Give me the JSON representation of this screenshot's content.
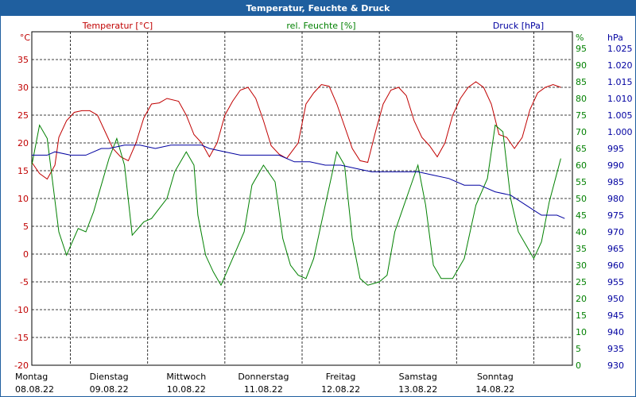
{
  "window": {
    "title": "Temperatur, Feuchte & Druck"
  },
  "colors": {
    "temperature": "#c00000",
    "humidity": "#008000",
    "pressure": "#0000a0",
    "header": "#1f5f9f",
    "grid": "#000000"
  },
  "chart_data": {
    "type": "line",
    "title": "Temperatur, Feuchte & Druck",
    "grid": true,
    "x_range": [
      0,
      7
    ],
    "x_tick_labels": [
      {
        "day": "Montag",
        "date": "08.08.22"
      },
      {
        "day": "Dienstag",
        "date": "09.08.22"
      },
      {
        "day": "Mittwoch",
        "date": "10.08.22"
      },
      {
        "day": "Donnerstag",
        "date": "11.08.22"
      },
      {
        "day": "Freitag",
        "date": "12.08.22"
      },
      {
        "day": "Samstag",
        "date": "13.08.22"
      },
      {
        "day": "Sonntag",
        "date": "14.08.22"
      }
    ],
    "axes": {
      "temperature": {
        "label": "Temperatur [°C]",
        "unit": "°C",
        "range": [
          -20,
          40
        ],
        "ticks": [
          "35",
          "30",
          "25",
          "20",
          "15",
          "10",
          "5",
          "0",
          "-5",
          "-10",
          "-15",
          "-20"
        ]
      },
      "humidity": {
        "label": "rel. Feuchte [%]",
        "unit": "%",
        "range": [
          0,
          100
        ],
        "ticks": [
          "95",
          "90",
          "85",
          "80",
          "75",
          "70",
          "65",
          "60",
          "55",
          "50",
          "45",
          "40",
          "35",
          "30",
          "25",
          "20",
          "15",
          "10",
          "5",
          "0"
        ]
      },
      "pressure": {
        "label": "Druck [hPa]",
        "unit": "hPa",
        "range": [
          930,
          1030
        ],
        "ticks": [
          "1.025",
          "1.020",
          "1.015",
          "1.010",
          "1.005",
          "1.000",
          "995",
          "990",
          "985",
          "980",
          "975",
          "970",
          "965",
          "960",
          "955",
          "950",
          "945",
          "940",
          "935",
          "930"
        ]
      }
    },
    "series": [
      {
        "name": "Temperatur [°C]",
        "axis": "temperature",
        "x": [
          0,
          0.1,
          0.2,
          0.3,
          0.35,
          0.45,
          0.55,
          0.65,
          0.75,
          0.85,
          0.95,
          1.05,
          1.15,
          1.25,
          1.35,
          1.45,
          1.55,
          1.65,
          1.75,
          1.9,
          2.0,
          2.1,
          2.2,
          2.3,
          2.4,
          2.5,
          2.6,
          2.7,
          2.8,
          2.9,
          3.0,
          3.1,
          3.2,
          3.3,
          3.45,
          3.55,
          3.65,
          3.75,
          3.85,
          3.95,
          4.05,
          4.15,
          4.25,
          4.35,
          4.45,
          4.55,
          4.65,
          4.75,
          4.85,
          4.95,
          5.05,
          5.15,
          5.25,
          5.35,
          5.45,
          5.55,
          5.65,
          5.75,
          5.85,
          5.95,
          6.05,
          6.15,
          6.25,
          6.35,
          6.45,
          6.55,
          6.65,
          6.75,
          6.85
        ],
        "y": [
          16.5,
          14.5,
          13.5,
          16,
          21,
          24,
          25.5,
          25.8,
          25.8,
          25,
          22,
          19,
          17.5,
          16.8,
          20,
          24.5,
          27,
          27.2,
          28,
          27.5,
          25,
          21.5,
          20,
          17.5,
          20,
          25,
          27.5,
          29.5,
          30,
          28,
          24,
          19.5,
          18,
          17.2,
          20,
          27,
          29,
          30.5,
          30.2,
          27,
          23,
          19,
          16.8,
          16.5,
          22,
          27,
          29.5,
          30,
          28.5,
          24,
          21,
          19.5,
          17.5,
          20,
          25,
          28,
          30,
          31,
          30,
          27,
          21.5,
          21,
          19,
          21,
          26,
          29,
          30,
          30.5,
          30
        ]
      },
      {
        "name": "rel. Feuchte [%]",
        "axis": "humidity",
        "x": [
          0,
          0.1,
          0.2,
          0.35,
          0.45,
          0.6,
          0.7,
          0.8,
          0.9,
          1.0,
          1.1,
          1.2,
          1.3,
          1.45,
          1.55,
          1.65,
          1.75,
          1.85,
          2.0,
          2.1,
          2.15,
          2.25,
          2.35,
          2.45,
          2.6,
          2.75,
          2.85,
          3.0,
          3.15,
          3.25,
          3.35,
          3.45,
          3.55,
          3.65,
          3.8,
          3.95,
          4.05,
          4.15,
          4.25,
          4.35,
          4.5,
          4.6,
          4.7,
          4.85,
          5.0,
          5.1,
          5.2,
          5.3,
          5.45,
          5.6,
          5.75,
          5.9,
          6.0,
          6.1,
          6.2,
          6.3,
          6.4,
          6.5,
          6.6,
          6.7,
          6.85
        ],
        "y": [
          60,
          72,
          68,
          40,
          33,
          41,
          40,
          46,
          54,
          62,
          68,
          60,
          39,
          43,
          44,
          47,
          50,
          58,
          64,
          60,
          45,
          33,
          28,
          24,
          32,
          40,
          54,
          60,
          55,
          38,
          30,
          27,
          26,
          32,
          48,
          64,
          60,
          38,
          26,
          24,
          25,
          27,
          40,
          50,
          60,
          48,
          30,
          26,
          26,
          32,
          48,
          56,
          72,
          70,
          50,
          40,
          36,
          32,
          37,
          49,
          62
        ]
      },
      {
        "name": "Druck [hPa]",
        "axis": "pressure",
        "x": [
          0,
          0.2,
          0.3,
          0.5,
          0.7,
          0.9,
          1.0,
          1.2,
          1.4,
          1.6,
          1.8,
          2.0,
          2.2,
          2.3,
          2.5,
          2.7,
          2.8,
          3.0,
          3.2,
          3.4,
          3.6,
          3.8,
          3.9,
          4.0,
          4.2,
          4.4,
          4.6,
          4.8,
          5.0,
          5.2,
          5.4,
          5.6,
          5.8,
          6.0,
          6.2,
          6.4,
          6.6,
          6.8,
          6.9
        ],
        "y": [
          993,
          993,
          994,
          993,
          993,
          995,
          995,
          996,
          996,
          995,
          996,
          996,
          996,
          995,
          994,
          993,
          993,
          993,
          993,
          991,
          991,
          990,
          990,
          990,
          989,
          988,
          988,
          988,
          988,
          987,
          986,
          984,
          984,
          982,
          981,
          978,
          975,
          975,
          974
        ]
      }
    ]
  }
}
